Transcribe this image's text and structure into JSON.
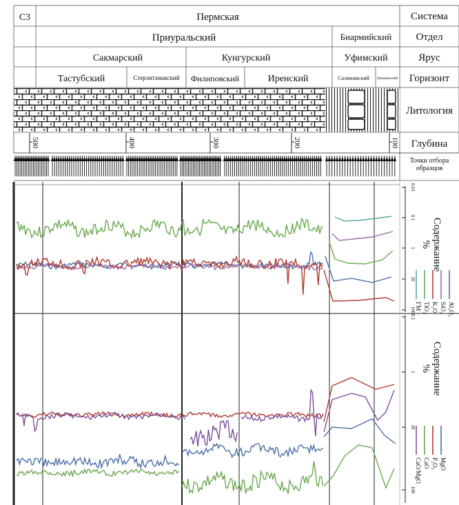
{
  "header": {
    "c3": "C3",
    "system_value": "Пермская",
    "system_label": "Система",
    "department_value_1": "Приуральский",
    "department_value_2": "Биармийский",
    "department_label": "Отдел",
    "stage_value_1": "Сакмарский",
    "stage_value_2": "Кунгурский",
    "stage_value_3": "Уфимский",
    "stage_label": "Ярус",
    "horizon_values": [
      "Тастубский",
      "Стерлитамакский",
      "Филиповский",
      "Иренский",
      "Соликамский",
      "Шешминский"
    ],
    "horizon_label": "Горизонт",
    "lithology_label": "Литология",
    "depth_label": "Глубина",
    "sampling_label_1": "Точки отбора",
    "sampling_label_2": "образцов"
  },
  "depth_ticks": [
    "500",
    "400",
    "300",
    "200",
    "100"
  ],
  "panel1": {
    "axis_ticks": [
      "0.01",
      "0.1",
      "1",
      "10",
      "100"
    ],
    "title_1": "Содержание",
    "title_2": "%",
    "legend": [
      {
        "label": "Al₂O₃",
        "color": "#4a6fa5"
      },
      {
        "label": "SiO₂",
        "color": "#9a6aa8"
      },
      {
        "label": "K₂O",
        "color": "#b03a2e"
      },
      {
        "label": "TiO₂",
        "color": "#6aa84f"
      },
      {
        "label": "ГМ",
        "color": "#58a8a0"
      }
    ]
  },
  "panel2": {
    "axis_ticks": [
      "0.1",
      "1",
      "10",
      "100"
    ],
    "title_1": "Содержание",
    "title_2": "%",
    "legend": [
      {
        "label": "MgO",
        "color": "#4a6fa5"
      },
      {
        "label": "P₂O₅",
        "color": "#b03a2e"
      },
      {
        "label": "CaO",
        "color": "#6aa84f"
      },
      {
        "label": "CaO/MgO",
        "color": "#7b4f9a"
      }
    ]
  }
}
